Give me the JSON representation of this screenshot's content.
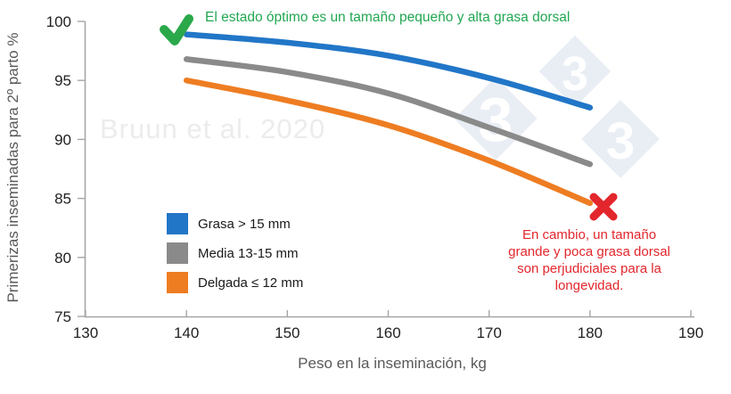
{
  "watermarks": {
    "citation": "Bruun et al. 2020",
    "logo_digit": "3"
  },
  "colors": {
    "good_green": "#21a751",
    "check_green": "#2aa84a",
    "bad_red": "#e2262c",
    "axis_gray": "#a6a6a6",
    "title_gray": "#595959"
  },
  "chart_data": {
    "type": "line",
    "x": [
      140,
      150,
      160,
      170,
      180
    ],
    "series": [
      {
        "name": "Grasa > 15 mm",
        "color": "#2176c7",
        "values": [
          98.9,
          98.2,
          97.1,
          95.2,
          92.7
        ]
      },
      {
        "name": "Media 13-15 mm",
        "color": "#8a8a8a",
        "values": [
          96.8,
          95.7,
          93.9,
          91.0,
          87.9
        ]
      },
      {
        "name": "Delgada ≤ 12 mm",
        "color": "#ee7d22",
        "values": [
          95.0,
          93.3,
          91.2,
          88.2,
          84.6
        ]
      }
    ],
    "xlabel": "Peso en la inseminación, kg",
    "ylabel": "Primerizas inseminadas para 2º parto %",
    "xlim": [
      130,
      190
    ],
    "ylim": [
      75,
      100
    ],
    "x_ticks": [
      130,
      140,
      150,
      160,
      170,
      180,
      190
    ],
    "y_ticks": [
      75,
      80,
      85,
      90,
      95,
      100
    ],
    "grid": false,
    "legend_position": "inside-lower-left",
    "annotations": {
      "optimal": {
        "text": "El estado óptimo es un tamaño pequeño y alta grasa dorsal"
      },
      "warning": {
        "lines": [
          "En cambio, un tamaño",
          "grande y poca grasa dorsal",
          "son perjudiciales para la",
          "longevidad."
        ]
      }
    }
  }
}
